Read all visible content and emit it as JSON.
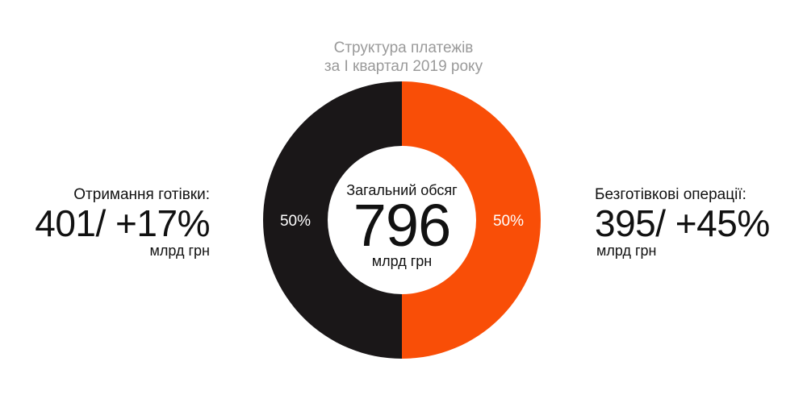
{
  "chart_data": {
    "type": "pie",
    "title": [
      "Структура платежів",
      "за I квартал 2019 року"
    ],
    "center": {
      "caption": "Загальний обсяг",
      "value": "796",
      "unit": "млрд грн"
    },
    "slices": [
      {
        "key": "cash",
        "percent": 50,
        "label": "50%",
        "color": "#1a1718",
        "caption": "Отримання готівки:",
        "value_text": "401/ +17%",
        "unit": "млрд грн"
      },
      {
        "key": "cashless",
        "percent": 50,
        "label": "50%",
        "color": "#f94e07",
        "caption": "Безготівкові операції:",
        "value_text": "395/ +45%",
        "unit": "млрд грн"
      }
    ]
  }
}
